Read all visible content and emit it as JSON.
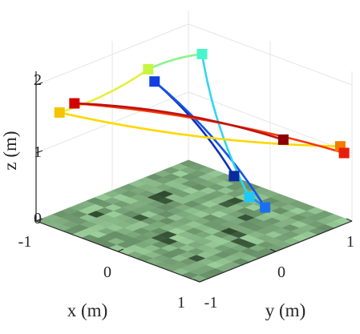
{
  "chart_data": {
    "type": "3d-trajectory",
    "title": "",
    "xlabel": "x (m)",
    "ylabel": "y (m)",
    "zlabel": "z (m)",
    "xlim": [
      -1,
      1
    ],
    "ylim": [
      -1,
      1
    ],
    "zlim": [
      0,
      2.2
    ],
    "x_ticks": [
      "-1",
      "0",
      "1"
    ],
    "y_ticks": [
      "-1",
      "0",
      "1"
    ],
    "z_ticks": [
      "0",
      "1",
      "2"
    ],
    "grid": true,
    "floor": "green occupancy-style grid map at z = 0",
    "colormap": "jet (dark blue to dark red along the trajectory)",
    "waypoints": [
      {
        "x": 0.35,
        "y": 0.15,
        "z": 0.75,
        "color": "#0b2a9e"
      },
      {
        "x": -0.25,
        "y": -0.25,
        "z": 2.05,
        "color": "#1440e0"
      },
      {
        "x": 0.45,
        "y": 0.45,
        "z": 0.2,
        "color": "#1a6ff0"
      },
      {
        "x": 0.35,
        "y": 0.35,
        "z": 0.35,
        "color": "#22c8f5"
      },
      {
        "x": -0.6,
        "y": 0.75,
        "z": 1.85,
        "color": "#4af5c9"
      },
      {
        "x": -0.7,
        "y": 0.15,
        "z": 1.85,
        "color": "#c8f542"
      },
      {
        "x": -0.9,
        "y": -0.8,
        "z": 1.55,
        "color": "#f5c400"
      },
      {
        "x": 0.95,
        "y": 0.9,
        "z": 1.12,
        "color": "#f57a00"
      },
      {
        "x": 0.95,
        "y": 0.95,
        "z": 1.0,
        "color": "#e81e0a"
      },
      {
        "x": -0.95,
        "y": -0.55,
        "z": 1.55,
        "color": "#d40000"
      },
      {
        "x": 0.3,
        "y": 0.85,
        "z": 0.95,
        "color": "#8a0000"
      }
    ],
    "segments": [
      {
        "from": 0,
        "to": 1,
        "color": "#0c2fb8"
      },
      {
        "from": 1,
        "to": 2,
        "color": "#1555e8"
      },
      {
        "from": 2,
        "to": 3,
        "color": "#1e8ff2"
      },
      {
        "from": 3,
        "to": 4,
        "color": "#2fd6f0"
      },
      {
        "from": 4,
        "to": 5,
        "color": "#8af58a"
      },
      {
        "from": 5,
        "to": 6,
        "color": "#e6f03a"
      },
      {
        "from": 6,
        "to": 7,
        "color": "#fcd800"
      },
      {
        "from": 7,
        "to": 8,
        "color": "#f55a00"
      },
      {
        "from": 8,
        "to": 9,
        "color": "#f23a0a"
      },
      {
        "from": 9,
        "to": 10,
        "color": "#c01010"
      }
    ]
  }
}
